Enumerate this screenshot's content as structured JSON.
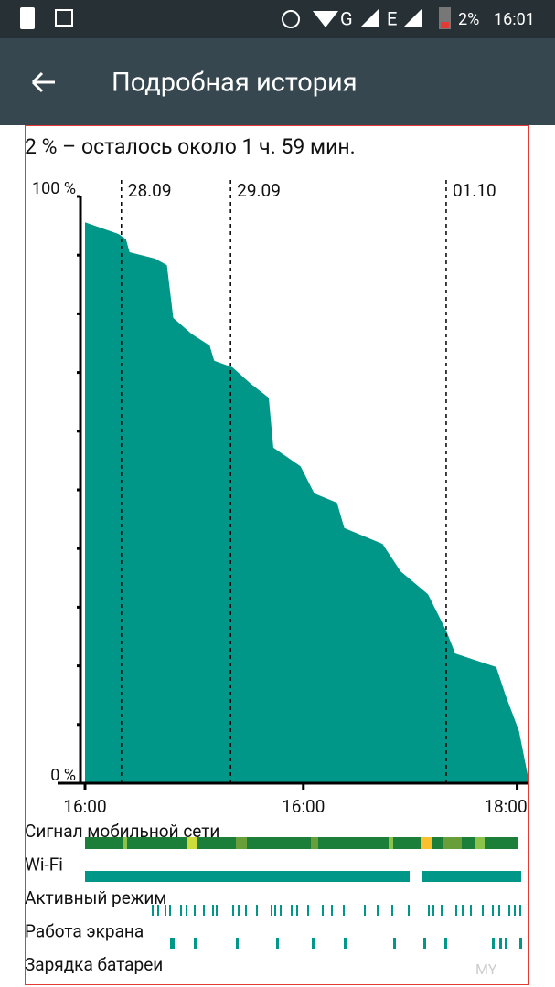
{
  "status_bar": {
    "battery": "2%",
    "time": "16:01"
  },
  "app_bar": {
    "title": "Подробная история"
  },
  "chart_data": {
    "type": "area",
    "subtitle": "2 % – осталось около 1 ч. 59 мин.",
    "x": [
      0,
      7.4,
      9,
      9.8,
      15.4,
      18,
      19.4,
      23.4,
      27.4,
      28.4,
      32.4,
      36.4,
      40.4,
      41.4,
      47.4,
      50.4,
      55.4,
      57,
      65.4,
      69.4,
      75.4,
      79.4,
      81.4,
      90.4,
      92.4,
      95.4,
      97.4
    ],
    "values": [
      95.6,
      93.6,
      92.7,
      90.5,
      89.4,
      88.3,
      79.3,
      76.6,
      74.6,
      72,
      70.9,
      68.1,
      65.7,
      57.2,
      54,
      49.4,
      47.8,
      43.5,
      40.8,
      36.1,
      32.2,
      26,
      22.1,
      19.8,
      15.1,
      8.9,
      1.1
    ],
    "color": "#009688",
    "xlim": [
      0,
      97.5
    ],
    "xticks": [
      {
        "value": 0,
        "label": "16:00"
      },
      {
        "value": 48,
        "label": "16:00"
      },
      {
        "value": 95,
        "label": "18:00"
      }
    ],
    "ylim": [
      0,
      100
    ],
    "yticks": [
      {
        "value": 0,
        "label": "0 %"
      },
      {
        "value": 100,
        "label": "100 %"
      }
    ],
    "minor_yticks": [
      10,
      20,
      30,
      40,
      50,
      60,
      70,
      80,
      90
    ],
    "annotations": [
      {
        "x": 8,
        "label": "28.09"
      },
      {
        "x": 32,
        "label": "29.09"
      },
      {
        "x": 79.4,
        "label": "01.10"
      }
    ],
    "tracks": [
      "Сигнал мобильной сети",
      "Wi-Fi",
      "Активный режим",
      "Работа экрана",
      "Зарядка батареи"
    ]
  }
}
